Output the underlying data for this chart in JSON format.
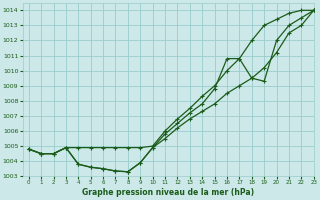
{
  "title": "Graphe pression niveau de la mer (hPa)",
  "background_color": "#cce8e8",
  "grid_color": "#99cccc",
  "line_color": "#1a5c1a",
  "xlim": [
    -0.5,
    23
  ],
  "ylim": [
    1003,
    1014.5
  ],
  "yticks": [
    1003,
    1004,
    1005,
    1006,
    1007,
    1008,
    1009,
    1010,
    1011,
    1012,
    1013,
    1014
  ],
  "xticks": [
    0,
    1,
    2,
    3,
    4,
    5,
    6,
    7,
    8,
    9,
    10,
    11,
    12,
    13,
    14,
    15,
    16,
    17,
    18,
    19,
    20,
    21,
    22,
    23
  ],
  "series1_x": [
    0,
    1,
    2,
    3,
    4,
    5,
    6,
    7,
    8,
    9,
    10,
    11,
    12,
    13,
    14,
    15,
    16,
    17,
    18,
    19,
    20,
    21,
    22,
    23
  ],
  "series1_y": [
    1004.8,
    1004.5,
    1004.5,
    1004.9,
    1004.9,
    1004.9,
    1004.9,
    1004.9,
    1004.9,
    1004.9,
    1005.0,
    1006.0,
    1006.8,
    1007.5,
    1008.3,
    1009.0,
    1010.0,
    1010.8,
    1012.0,
    1013.0,
    1013.4,
    1013.8,
    1014.0,
    1014.0
  ],
  "series2_x": [
    0,
    1,
    2,
    3,
    4,
    5,
    6,
    7,
    8,
    9,
    10,
    11,
    12,
    13,
    14,
    15,
    16,
    17,
    18,
    19,
    20,
    21,
    22,
    23
  ],
  "series2_y": [
    1004.8,
    1004.5,
    1004.5,
    1004.9,
    1003.8,
    1003.6,
    1003.5,
    1003.35,
    1003.3,
    1003.9,
    1004.9,
    1005.5,
    1006.2,
    1006.8,
    1007.3,
    1007.8,
    1008.5,
    1009.0,
    1009.5,
    1010.2,
    1011.2,
    1012.5,
    1013.0,
    1014.0
  ],
  "series3_x": [
    0,
    1,
    2,
    3,
    4,
    5,
    6,
    7,
    8,
    9,
    10,
    11,
    12,
    13,
    14,
    15,
    16,
    17,
    18,
    19,
    20,
    21,
    22,
    23
  ],
  "series3_y": [
    1004.8,
    1004.5,
    1004.5,
    1004.9,
    1003.8,
    1003.6,
    1003.5,
    1003.35,
    1003.3,
    1003.9,
    1004.9,
    1005.8,
    1006.5,
    1007.2,
    1007.8,
    1008.8,
    1010.8,
    1010.8,
    1009.5,
    1009.3,
    1012.0,
    1013.0,
    1013.5,
    1014.0
  ]
}
